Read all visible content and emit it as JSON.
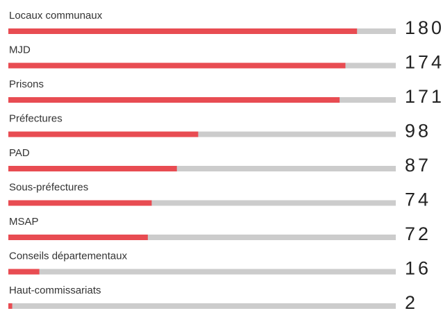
{
  "chart_data": {
    "type": "hbar",
    "categories": [
      "Locaux communaux",
      "MJD",
      "Prisons",
      "Préfectures",
      "PAD",
      "Sous-préfectures",
      "MSAP",
      "Conseils départementaux",
      "Haut-commissariats"
    ],
    "values": [
      180,
      174,
      171,
      98,
      87,
      74,
      72,
      16,
      2
    ],
    "color": "#e84c52",
    "track_color": "#cccccc",
    "xlim": [
      0,
      200
    ]
  }
}
